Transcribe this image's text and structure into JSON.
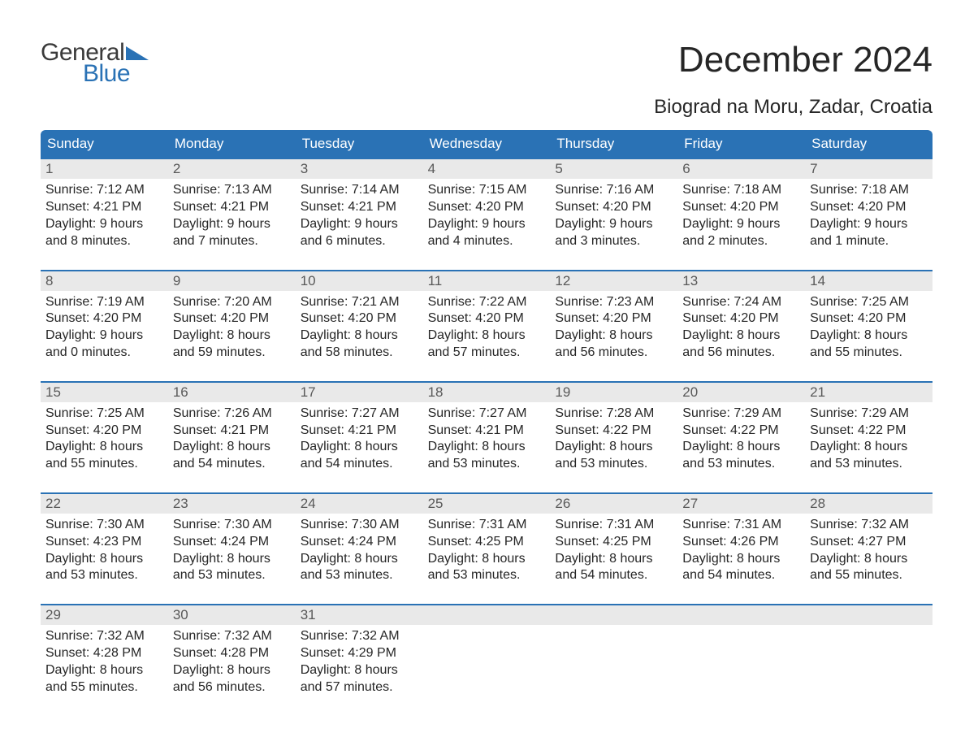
{
  "colors": {
    "header_bg": "#2a72b5",
    "header_text": "#ffffff",
    "daynum_bg": "#e9e9e9",
    "daynum_text": "#595959",
    "body_text": "#262626",
    "week_border": "#2a72b5",
    "logo_gray": "#3a3a3a",
    "logo_blue": "#2a72b5",
    "page_bg": "#ffffff"
  },
  "logo": {
    "line1": "General",
    "line2": "Blue"
  },
  "title": "December 2024",
  "location": "Biograd na Moru, Zadar, Croatia",
  "day_names": [
    "Sunday",
    "Monday",
    "Tuesday",
    "Wednesday",
    "Thursday",
    "Friday",
    "Saturday"
  ],
  "weeks": [
    [
      {
        "num": "1",
        "sunrise": "Sunrise: 7:12 AM",
        "sunset": "Sunset: 4:21 PM",
        "d1": "Daylight: 9 hours",
        "d2": "and 8 minutes."
      },
      {
        "num": "2",
        "sunrise": "Sunrise: 7:13 AM",
        "sunset": "Sunset: 4:21 PM",
        "d1": "Daylight: 9 hours",
        "d2": "and 7 minutes."
      },
      {
        "num": "3",
        "sunrise": "Sunrise: 7:14 AM",
        "sunset": "Sunset: 4:21 PM",
        "d1": "Daylight: 9 hours",
        "d2": "and 6 minutes."
      },
      {
        "num": "4",
        "sunrise": "Sunrise: 7:15 AM",
        "sunset": "Sunset: 4:20 PM",
        "d1": "Daylight: 9 hours",
        "d2": "and 4 minutes."
      },
      {
        "num": "5",
        "sunrise": "Sunrise: 7:16 AM",
        "sunset": "Sunset: 4:20 PM",
        "d1": "Daylight: 9 hours",
        "d2": "and 3 minutes."
      },
      {
        "num": "6",
        "sunrise": "Sunrise: 7:18 AM",
        "sunset": "Sunset: 4:20 PM",
        "d1": "Daylight: 9 hours",
        "d2": "and 2 minutes."
      },
      {
        "num": "7",
        "sunrise": "Sunrise: 7:18 AM",
        "sunset": "Sunset: 4:20 PM",
        "d1": "Daylight: 9 hours",
        "d2": "and 1 minute."
      }
    ],
    [
      {
        "num": "8",
        "sunrise": "Sunrise: 7:19 AM",
        "sunset": "Sunset: 4:20 PM",
        "d1": "Daylight: 9 hours",
        "d2": "and 0 minutes."
      },
      {
        "num": "9",
        "sunrise": "Sunrise: 7:20 AM",
        "sunset": "Sunset: 4:20 PM",
        "d1": "Daylight: 8 hours",
        "d2": "and 59 minutes."
      },
      {
        "num": "10",
        "sunrise": "Sunrise: 7:21 AM",
        "sunset": "Sunset: 4:20 PM",
        "d1": "Daylight: 8 hours",
        "d2": "and 58 minutes."
      },
      {
        "num": "11",
        "sunrise": "Sunrise: 7:22 AM",
        "sunset": "Sunset: 4:20 PM",
        "d1": "Daylight: 8 hours",
        "d2": "and 57 minutes."
      },
      {
        "num": "12",
        "sunrise": "Sunrise: 7:23 AM",
        "sunset": "Sunset: 4:20 PM",
        "d1": "Daylight: 8 hours",
        "d2": "and 56 minutes."
      },
      {
        "num": "13",
        "sunrise": "Sunrise: 7:24 AM",
        "sunset": "Sunset: 4:20 PM",
        "d1": "Daylight: 8 hours",
        "d2": "and 56 minutes."
      },
      {
        "num": "14",
        "sunrise": "Sunrise: 7:25 AM",
        "sunset": "Sunset: 4:20 PM",
        "d1": "Daylight: 8 hours",
        "d2": "and 55 minutes."
      }
    ],
    [
      {
        "num": "15",
        "sunrise": "Sunrise: 7:25 AM",
        "sunset": "Sunset: 4:20 PM",
        "d1": "Daylight: 8 hours",
        "d2": "and 55 minutes."
      },
      {
        "num": "16",
        "sunrise": "Sunrise: 7:26 AM",
        "sunset": "Sunset: 4:21 PM",
        "d1": "Daylight: 8 hours",
        "d2": "and 54 minutes."
      },
      {
        "num": "17",
        "sunrise": "Sunrise: 7:27 AM",
        "sunset": "Sunset: 4:21 PM",
        "d1": "Daylight: 8 hours",
        "d2": "and 54 minutes."
      },
      {
        "num": "18",
        "sunrise": "Sunrise: 7:27 AM",
        "sunset": "Sunset: 4:21 PM",
        "d1": "Daylight: 8 hours",
        "d2": "and 53 minutes."
      },
      {
        "num": "19",
        "sunrise": "Sunrise: 7:28 AM",
        "sunset": "Sunset: 4:22 PM",
        "d1": "Daylight: 8 hours",
        "d2": "and 53 minutes."
      },
      {
        "num": "20",
        "sunrise": "Sunrise: 7:29 AM",
        "sunset": "Sunset: 4:22 PM",
        "d1": "Daylight: 8 hours",
        "d2": "and 53 minutes."
      },
      {
        "num": "21",
        "sunrise": "Sunrise: 7:29 AM",
        "sunset": "Sunset: 4:22 PM",
        "d1": "Daylight: 8 hours",
        "d2": "and 53 minutes."
      }
    ],
    [
      {
        "num": "22",
        "sunrise": "Sunrise: 7:30 AM",
        "sunset": "Sunset: 4:23 PM",
        "d1": "Daylight: 8 hours",
        "d2": "and 53 minutes."
      },
      {
        "num": "23",
        "sunrise": "Sunrise: 7:30 AM",
        "sunset": "Sunset: 4:24 PM",
        "d1": "Daylight: 8 hours",
        "d2": "and 53 minutes."
      },
      {
        "num": "24",
        "sunrise": "Sunrise: 7:30 AM",
        "sunset": "Sunset: 4:24 PM",
        "d1": "Daylight: 8 hours",
        "d2": "and 53 minutes."
      },
      {
        "num": "25",
        "sunrise": "Sunrise: 7:31 AM",
        "sunset": "Sunset: 4:25 PM",
        "d1": "Daylight: 8 hours",
        "d2": "and 53 minutes."
      },
      {
        "num": "26",
        "sunrise": "Sunrise: 7:31 AM",
        "sunset": "Sunset: 4:25 PM",
        "d1": "Daylight: 8 hours",
        "d2": "and 54 minutes."
      },
      {
        "num": "27",
        "sunrise": "Sunrise: 7:31 AM",
        "sunset": "Sunset: 4:26 PM",
        "d1": "Daylight: 8 hours",
        "d2": "and 54 minutes."
      },
      {
        "num": "28",
        "sunrise": "Sunrise: 7:32 AM",
        "sunset": "Sunset: 4:27 PM",
        "d1": "Daylight: 8 hours",
        "d2": "and 55 minutes."
      }
    ],
    [
      {
        "num": "29",
        "sunrise": "Sunrise: 7:32 AM",
        "sunset": "Sunset: 4:28 PM",
        "d1": "Daylight: 8 hours",
        "d2": "and 55 minutes."
      },
      {
        "num": "30",
        "sunrise": "Sunrise: 7:32 AM",
        "sunset": "Sunset: 4:28 PM",
        "d1": "Daylight: 8 hours",
        "d2": "and 56 minutes."
      },
      {
        "num": "31",
        "sunrise": "Sunrise: 7:32 AM",
        "sunset": "Sunset: 4:29 PM",
        "d1": "Daylight: 8 hours",
        "d2": "and 57 minutes."
      },
      null,
      null,
      null,
      null
    ]
  ]
}
